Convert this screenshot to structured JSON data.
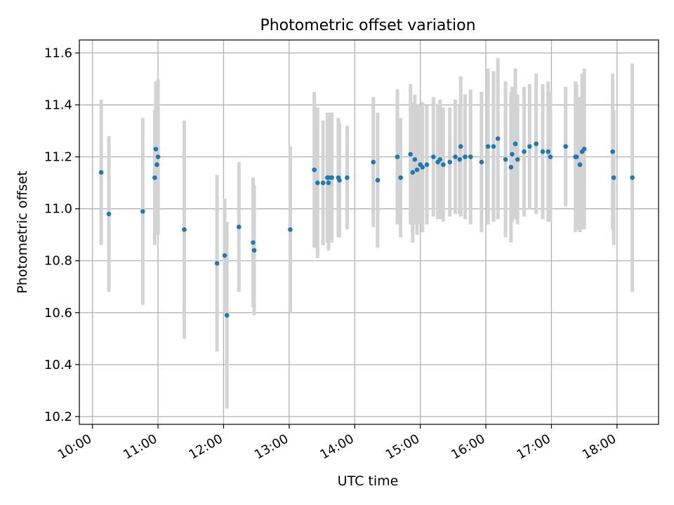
{
  "chart_data": {
    "type": "scatter",
    "title": "Photometric offset variation",
    "xlabel": "UTC time",
    "ylabel": "Photometric offset",
    "x_ticks": [
      "10:00",
      "11:00",
      "12:00",
      "13:00",
      "14:00",
      "15:00",
      "16:00",
      "17:00",
      "18:00"
    ],
    "y_ticks": [
      "10.2",
      "10.4",
      "10.6",
      "10.8",
      "11.0",
      "11.2",
      "11.4",
      "11.6"
    ],
    "xlim": [
      "09:48",
      "18:38"
    ],
    "ylim": [
      10.17,
      11.65
    ],
    "grid": true,
    "point_color": "#1f77b4",
    "errorbar_color": "#d3d3d3",
    "series": [
      {
        "x": [
          "10:08",
          "10:15",
          "10:46",
          "10:57",
          "10:58",
          "10:59",
          "11:00",
          "11:24",
          "11:54",
          "12:01",
          "12:03",
          "12:14",
          "12:27",
          "12:28",
          "13:01",
          "13:23",
          "13:26",
          "13:31",
          "13:35",
          "13:36",
          "13:36",
          "13:39",
          "13:45",
          "13:46",
          "13:53",
          "14:17",
          "14:21",
          "14:39",
          "14:42",
          "14:51",
          "14:53",
          "14:55",
          "14:57",
          "15:00",
          "15:02",
          "15:06",
          "15:12",
          "15:16",
          "15:18",
          "15:21",
          "15:27",
          "15:32",
          "15:36",
          "15:37",
          "15:41",
          "15:46",
          "15:56",
          "16:02",
          "16:07",
          "16:11",
          "16:18",
          "16:23",
          "16:24",
          "16:27",
          "16:29",
          "16:35",
          "16:40",
          "16:46",
          "16:52",
          "16:57",
          "16:59",
          "17:13",
          "17:22",
          "17:23",
          "17:26",
          "17:28",
          "17:30",
          "17:56",
          "17:57",
          "18:14"
        ],
        "y": [
          11.14,
          10.98,
          10.99,
          11.12,
          11.23,
          11.17,
          11.2,
          10.92,
          10.79,
          10.82,
          10.59,
          10.93,
          10.87,
          10.84,
          10.92,
          11.15,
          11.1,
          11.1,
          11.12,
          11.1,
          11.12,
          11.12,
          11.12,
          11.11,
          11.12,
          11.18,
          11.11,
          11.2,
          11.12,
          11.21,
          11.14,
          11.19,
          11.15,
          11.17,
          11.16,
          11.17,
          11.2,
          11.18,
          11.19,
          11.17,
          11.18,
          11.2,
          11.19,
          11.24,
          11.2,
          11.2,
          11.18,
          11.24,
          11.24,
          11.27,
          11.19,
          11.16,
          11.21,
          11.25,
          11.19,
          11.22,
          11.24,
          11.25,
          11.22,
          11.22,
          11.2,
          11.24,
          11.2,
          11.2,
          11.17,
          11.22,
          11.23,
          11.22,
          11.12,
          11.12
        ],
        "err": [
          0.28,
          0.3,
          0.36,
          0.26,
          0.26,
          0.24,
          0.3,
          0.42,
          0.34,
          0.22,
          0.36,
          0.25,
          0.25,
          0.25,
          0.32,
          0.3,
          0.29,
          0.24,
          0.25,
          0.26,
          0.25,
          0.25,
          0.23,
          0.22,
          0.2,
          0.25,
          0.26,
          0.26,
          0.23,
          0.27,
          0.27,
          0.25,
          0.25,
          0.23,
          0.25,
          0.23,
          0.23,
          0.22,
          0.23,
          0.22,
          0.21,
          0.22,
          0.21,
          0.27,
          0.24,
          0.26,
          0.27,
          0.3,
          0.29,
          0.31,
          0.3,
          0.29,
          0.26,
          0.29,
          0.25,
          0.25,
          0.24,
          0.27,
          0.26,
          0.27,
          0.25,
          0.23,
          0.29,
          0.28,
          0.26,
          0.3,
          0.31,
          0.3,
          0.26,
          0.44
        ]
      }
    ]
  }
}
